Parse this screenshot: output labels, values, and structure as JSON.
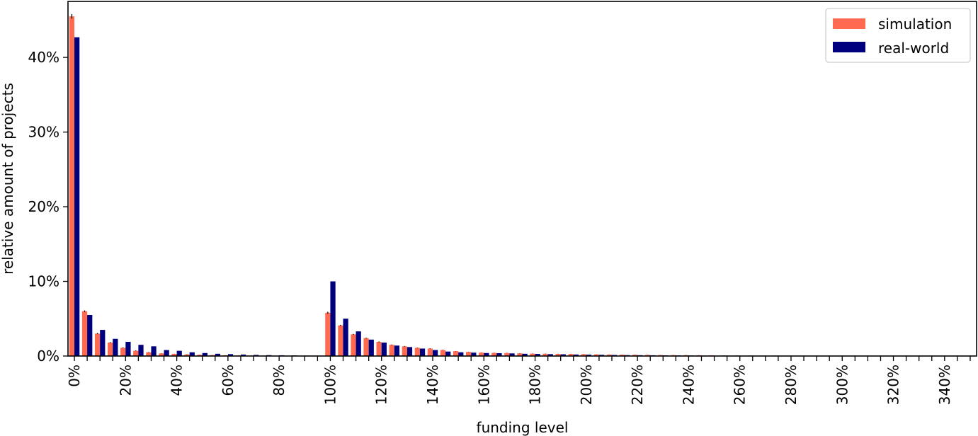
{
  "chart_data": {
    "type": "bar",
    "xlabel": "funding level",
    "ylabel": "relative amount of projects",
    "x_start": 0,
    "x_step": 5,
    "xlim": [
      -2.5,
      352.5
    ],
    "ylim": [
      0,
      47.5
    ],
    "x_tick_values": [
      0,
      20,
      40,
      60,
      80,
      100,
      120,
      140,
      160,
      180,
      200,
      220,
      240,
      260,
      280,
      300,
      320,
      340
    ],
    "x_tick_labels": [
      "0%",
      "20%",
      "40%",
      "60%",
      "80%",
      "100%",
      "120%",
      "140%",
      "160%",
      "180%",
      "200%",
      "220%",
      "240%",
      "260%",
      "280%",
      "300%",
      "320%",
      "340%"
    ],
    "y_tick_values": [
      0,
      10,
      20,
      30,
      40
    ],
    "y_tick_labels": [
      "0%",
      "10%",
      "20%",
      "30%",
      "40%"
    ],
    "grid": false,
    "legend_position": "top-right",
    "colors": {
      "simulation": "#ff6a50",
      "real-world": "#00007f"
    },
    "series": [
      {
        "name": "simulation",
        "values": [
          45.5,
          6.0,
          3.0,
          1.8,
          1.1,
          0.7,
          0.5,
          0.35,
          0.28,
          0.22,
          0.17,
          0.13,
          0.1,
          0.08,
          0.06,
          0.05,
          0.04,
          0.03,
          0.02,
          0.02,
          5.8,
          4.1,
          2.9,
          2.4,
          1.9,
          1.5,
          1.3,
          1.1,
          1.0,
          0.8,
          0.65,
          0.55,
          0.45,
          0.42,
          0.4,
          0.36,
          0.32,
          0.3,
          0.28,
          0.27,
          0.25,
          0.22,
          0.2,
          0.18,
          0.17,
          0.15,
          0.13,
          0.12,
          0.11,
          0.1,
          0.09,
          0.08,
          0.07,
          0.06,
          0.05,
          0.05,
          0.04,
          0.04,
          0.03,
          0.03,
          0.03,
          0.02,
          0.02,
          0.02,
          0.02,
          0.01,
          0.01,
          0.01,
          0.01,
          0.01,
          0.01
        ],
        "errors": [
          0.3,
          0.1,
          0.08,
          0.06,
          0.05,
          0.04,
          0.03,
          0.02,
          0.02,
          0.02,
          0.01,
          0.01,
          0.01,
          0.01,
          0.01,
          0.01,
          0.01,
          0.01,
          0.01,
          0.01,
          0.12,
          0.08,
          0.06,
          0.05,
          0.05,
          0.04,
          0.04,
          0.03,
          0.03,
          0.03,
          0.02,
          0.02,
          0.02,
          0.02,
          0.02,
          0.02,
          0.02,
          0.02,
          0.02,
          0.02,
          0.01,
          0.01,
          0.01,
          0.01,
          0.01,
          0.01,
          0.01,
          0.01,
          0.01,
          0.01,
          0.01,
          0.01,
          0.01,
          0.01,
          0.01,
          0.01,
          0.01,
          0.01,
          0.01,
          0.01,
          0.01,
          0.01,
          0.01,
          0.01,
          0.01,
          0.01,
          0.01,
          0.01,
          0.01,
          0.01,
          0.01
        ]
      },
      {
        "name": "real-world",
        "values": [
          42.7,
          5.5,
          3.5,
          2.3,
          1.9,
          1.5,
          1.3,
          0.8,
          0.7,
          0.5,
          0.4,
          0.3,
          0.25,
          0.2,
          0.15,
          0.12,
          0.1,
          0.08,
          0.06,
          0.05,
          10.0,
          5.0,
          3.3,
          2.2,
          1.8,
          1.4,
          1.2,
          1.0,
          0.8,
          0.6,
          0.5,
          0.45,
          0.4,
          0.38,
          0.35,
          0.3,
          0.28,
          0.25,
          0.23,
          0.2,
          0.18,
          0.16,
          0.14,
          0.12,
          0.11,
          0.1,
          0.09,
          0.08,
          0.07,
          0.06,
          0.05,
          0.05,
          0.04,
          0.04,
          0.03,
          0.03,
          0.03,
          0.02,
          0.02,
          0.02,
          0.02,
          0.01,
          0.01,
          0.01,
          0.01,
          0.01,
          0.01,
          0.01,
          0.01,
          0.01,
          0.01
        ]
      }
    ]
  }
}
